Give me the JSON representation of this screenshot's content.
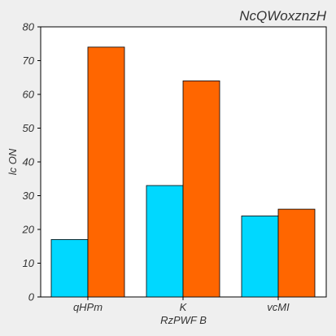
{
  "chart_data": {
    "type": "bar",
    "title": "NcQWoxznzH",
    "xlabel": "RzPWF B",
    "ylabel": "lc ON",
    "categories": [
      "qHPm",
      "K",
      "vcMI"
    ],
    "series": [
      {
        "values": [
          17,
          33,
          24
        ],
        "color": "#00d8ff"
      },
      {
        "values": [
          74,
          64,
          26
        ],
        "color": "#ff6600"
      }
    ],
    "ylim": [
      0,
      80
    ],
    "yticks": [
      0,
      10,
      20,
      30,
      40,
      50,
      60,
      70,
      80
    ],
    "grid": false,
    "legend": "none"
  },
  "colors": {
    "background": "#efefef",
    "plot_background": "#ffffff",
    "axis": "#000000",
    "text": "#333333"
  }
}
